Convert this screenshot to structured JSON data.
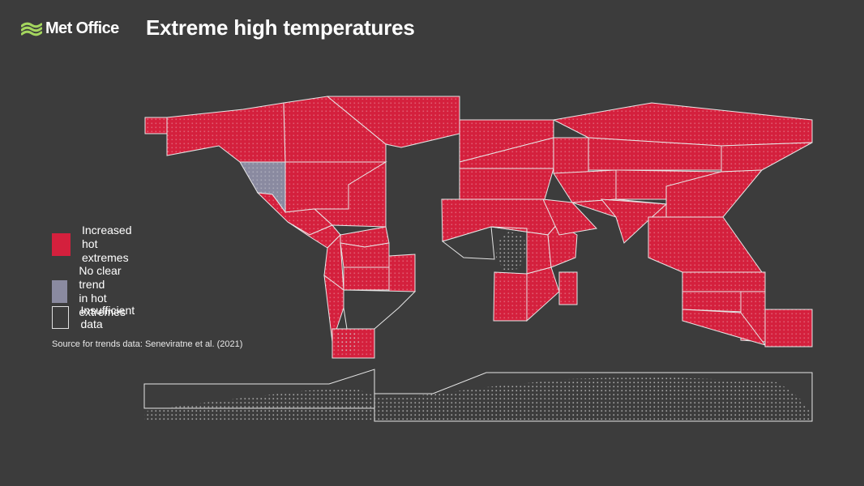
{
  "header": {
    "brand": "Met Office",
    "title": "Extreme high temperatures"
  },
  "legend": [
    {
      "label": "Increased\nhot extremes",
      "fill": "#d4203d",
      "border": "#d4203d"
    },
    {
      "label": "No clear trend\nin hot extremes",
      "fill": "#8a8aa0",
      "border": "#8a8aa0"
    },
    {
      "label": "Insufficient data",
      "fill": "#3c3c3c",
      "border": "#e0e0e0"
    }
  ],
  "source": "Source for trends data: Seneviratne et al. (2021)",
  "colors": {
    "background": "#3c3c3c",
    "increased": "#d4203d",
    "no_trend": "#8a8aa0",
    "outline": "#e6e6e6",
    "logo": "#a4d65e"
  },
  "regions": [
    {
      "name": "North-West North America",
      "status": "increased"
    },
    {
      "name": "North-East North America",
      "status": "increased"
    },
    {
      "name": "Greenland/Iceland",
      "status": "increased"
    },
    {
      "name": "Western North America",
      "status": "increased"
    },
    {
      "name": "Central North America",
      "status": "no_trend"
    },
    {
      "name": "Eastern North America",
      "status": "increased"
    },
    {
      "name": "Northern Central America",
      "status": "increased"
    },
    {
      "name": "Southern Central America",
      "status": "increased"
    },
    {
      "name": "Caribbean",
      "status": "increased"
    },
    {
      "name": "North-Western South America",
      "status": "increased"
    },
    {
      "name": "Northern South America",
      "status": "increased"
    },
    {
      "name": "South American Monsoon",
      "status": "increased"
    },
    {
      "name": "North-Eastern South America",
      "status": "increased"
    },
    {
      "name": "South-Western South America",
      "status": "increased"
    },
    {
      "name": "South-Eastern South America",
      "status": "increased"
    },
    {
      "name": "Southern South America",
      "status": "insufficient"
    },
    {
      "name": "Northern Europe",
      "status": "increased"
    },
    {
      "name": "Western & Central Europe",
      "status": "increased"
    },
    {
      "name": "Mediterranean",
      "status": "increased"
    },
    {
      "name": "Sahara",
      "status": "increased"
    },
    {
      "name": "Western Africa",
      "status": "increased"
    },
    {
      "name": "Central Africa",
      "status": "insufficient"
    },
    {
      "name": "North Eastern Africa",
      "status": "increased"
    },
    {
      "name": "South Eastern Africa",
      "status": "increased"
    },
    {
      "name": "West Southern Africa",
      "status": "increased"
    },
    {
      "name": "East Southern Africa",
      "status": "increased"
    },
    {
      "name": "Madagascar",
      "status": "increased"
    },
    {
      "name": "Russian Arctic",
      "status": "increased"
    },
    {
      "name": "West Siberia",
      "status": "increased"
    },
    {
      "name": "East Siberia",
      "status": "increased"
    },
    {
      "name": "Russian Far East",
      "status": "increased"
    },
    {
      "name": "West Central Asia",
      "status": "increased"
    },
    {
      "name": "East Central Asia",
      "status": "increased"
    },
    {
      "name": "Tibetan Plateau",
      "status": "increased"
    },
    {
      "name": "East Asia",
      "status": "increased"
    },
    {
      "name": "Arabian Peninsula",
      "status": "increased"
    },
    {
      "name": "South Asia",
      "status": "increased"
    },
    {
      "name": "South East Asia",
      "status": "increased"
    },
    {
      "name": "Northern Australia",
      "status": "increased"
    },
    {
      "name": "Central Australia",
      "status": "increased"
    },
    {
      "name": "Eastern Australia",
      "status": "increased"
    },
    {
      "name": "Southern Australia",
      "status": "increased"
    },
    {
      "name": "New Zealand",
      "status": "increased"
    },
    {
      "name": "West Antarctica",
      "status": "insufficient"
    },
    {
      "name": "East Antarctica",
      "status": "insufficient"
    }
  ]
}
